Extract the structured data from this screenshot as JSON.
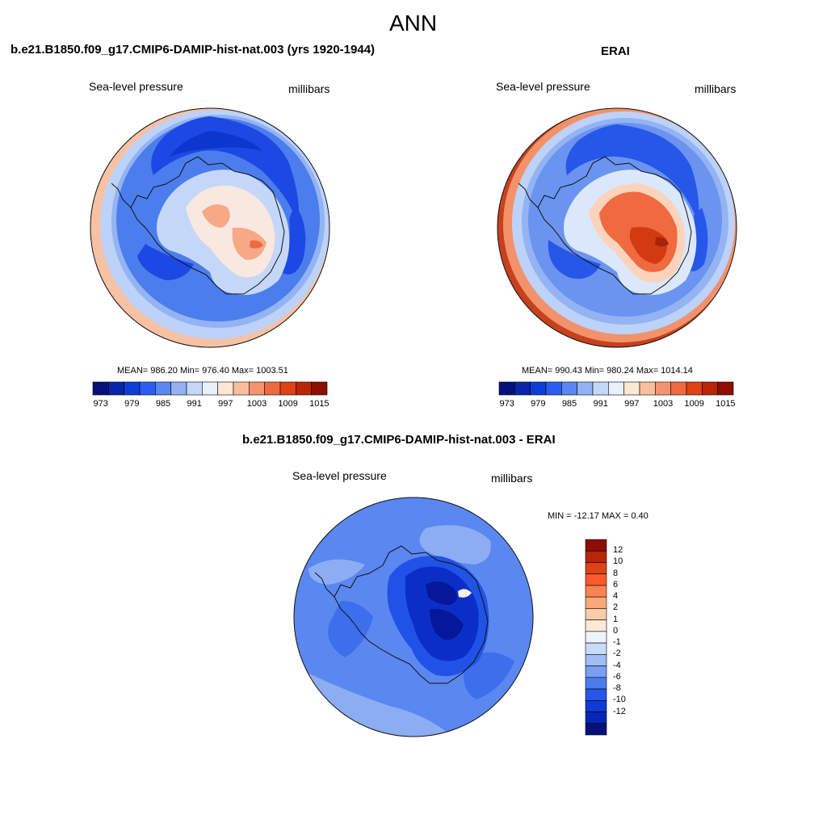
{
  "figure": {
    "title": "ANN"
  },
  "panels": [
    {
      "id": "model",
      "title": "b.e21.B1850.f09_g17.CMIP6-DAMIP-hist-nat.003 (yrs 1920-1944)",
      "left_label": "Sea-level pressure",
      "right_label": "millibars",
      "stats_text": "MEAN= 986.20  Min= 976.40  Max= 1003.51",
      "mean": 986.2,
      "min": 976.4,
      "max": 1003.51
    },
    {
      "id": "obs",
      "title": "ERAI",
      "left_label": "Sea-level pressure",
      "right_label": "millibars",
      "stats_text": "MEAN= 990.43  Min= 980.24  Max= 1014.14",
      "mean": 990.43,
      "min": 980.24,
      "max": 1014.14
    },
    {
      "id": "diff",
      "title": "b.e21.B1850.f09_g17.CMIP6-DAMIP-hist-nat.003 - ERAI",
      "left_label": "Sea-level pressure",
      "right_label": "millibars",
      "stats_text": "MIN = -12.17 MAX =   0.40",
      "min": -12.17,
      "max": 0.4
    }
  ],
  "colorbar_abs": {
    "colors": [
      "#06117a",
      "#0826a8",
      "#0d3fd6",
      "#2a5ef2",
      "#5a87f0",
      "#92b2f3",
      "#c4d7f8",
      "#e9f0fd",
      "#fde6d2",
      "#f9bf9d",
      "#f59570",
      "#ee6a40",
      "#de4216",
      "#b82606",
      "#8d0e03"
    ],
    "tick_labels": [
      "973",
      "979",
      "985",
      "991",
      "997",
      "1003",
      "1009",
      "1015"
    ]
  },
  "colorbar_diff": {
    "colors": [
      "#8d0e03",
      "#b82606",
      "#de4216",
      "#ff5a2c",
      "#f9844f",
      "#f9a87a",
      "#fccba8",
      "#fde9d6",
      "#eef3fc",
      "#c8dbfa",
      "#a0bdf6",
      "#789ff2",
      "#4a7ced",
      "#2657e9",
      "#0e3ad8",
      "#0627b5",
      "#06117a"
    ],
    "tick_labels": [
      "12",
      "10",
      "8",
      "6",
      "4",
      "2",
      "1",
      "0",
      "-1",
      "-2",
      "-4",
      "-6",
      "-8",
      "-10",
      "-12"
    ]
  },
  "map_colors": {
    "model": {
      "outer_warm": "#f7c2a3",
      "rim": "#bcd2f8",
      "ring_light": "#93b3f3",
      "belt": "#4c7ded",
      "trough": "#1c49e3",
      "deep": "#0d36cf",
      "shelf": "#c4d7f8",
      "plateau": "#f8e8e0",
      "peak": "#f7a886",
      "core": "#ec6a3f"
    },
    "obs": {
      "outer_warm": "#f2926a",
      "edge_dark": "#c0330e",
      "rim": "#bcd2f8",
      "ring_light": "#93b3f3",
      "belt": "#6a94f0",
      "trough": "#2657e9",
      "shelf": "#dbe7fb",
      "plateau": "#fbd3bc",
      "peak": "#ef6a3f",
      "core": "#d23b12",
      "deep_core": "#a9230a"
    },
    "diff": {
      "base": "#5a87f0",
      "light": "#8cadf3",
      "mid": "#3d6eec",
      "inner": "#2152e6",
      "deep": "#0b2fc6",
      "min": "#05179a",
      "warm": "#f6efe8"
    }
  }
}
